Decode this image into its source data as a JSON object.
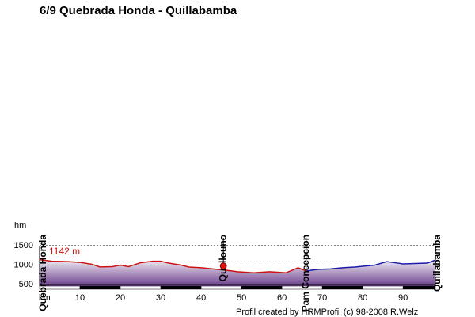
{
  "chart_data": {
    "type": "profile",
    "title": "6/9 Quebrada Honda - Quillabamba",
    "y_label": "hm",
    "x_label": "km",
    "annotation": "1142 m",
    "footer": "Profil created by HRMProfil (c) 98-2008 R.Welz",
    "x": [
      0,
      3,
      7,
      10,
      13,
      15,
      18,
      20,
      22,
      25,
      28,
      30,
      32,
      35,
      37,
      40,
      43,
      46,
      49,
      53,
      57,
      61,
      64,
      66,
      69,
      72,
      75,
      78,
      80,
      83,
      86,
      88,
      90,
      93,
      96,
      98
    ],
    "series": [
      {
        "color": "#cc1111",
        "values": [
          1140,
          1100,
          1090,
          1070,
          1020,
          950,
          960,
          1000,
          960,
          1060,
          1100,
          1100,
          1050,
          1000,
          950,
          930,
          900,
          870,
          830,
          800,
          830,
          800,
          930,
          850,
          null,
          null,
          null,
          null,
          null,
          null,
          null,
          null,
          null,
          null,
          null,
          null
        ]
      },
      {
        "color": "#1a1aa8",
        "values": [
          null,
          null,
          null,
          null,
          null,
          null,
          null,
          null,
          null,
          null,
          null,
          null,
          null,
          null,
          null,
          null,
          null,
          null,
          null,
          null,
          null,
          null,
          null,
          850,
          890,
          900,
          930,
          950,
          970,
          1000,
          1090,
          1060,
          1030,
          1040,
          1050,
          1130
        ]
      }
    ],
    "places": [
      {
        "label": "Quebrada Honda",
        "km": 0
      },
      {
        "label": "Quellouno",
        "km": 45.5
      },
      {
        "label": "Pam Concepcion",
        "km": 66
      },
      {
        "label": "Quillabamba",
        "km": 98
      }
    ],
    "xlim": [
      0,
      98
    ],
    "xticks": [
      10,
      20,
      30,
      40,
      50,
      60,
      70,
      80,
      90
    ],
    "ylim": [
      500,
      1500
    ],
    "yticks": [
      500,
      1000,
      1500
    ]
  }
}
